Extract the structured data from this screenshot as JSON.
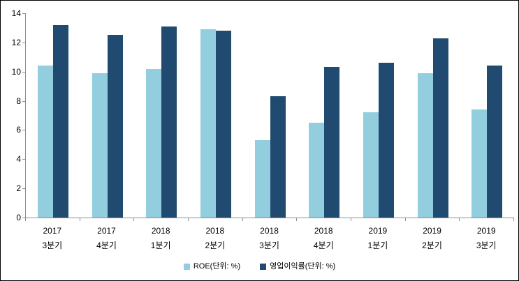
{
  "chart_data": {
    "type": "bar",
    "title": "",
    "xlabel": "",
    "ylabel": "",
    "categories": [
      {
        "year": "2017",
        "quarter": "3분기"
      },
      {
        "year": "2017",
        "quarter": "4분기"
      },
      {
        "year": "2018",
        "quarter": "1분기"
      },
      {
        "year": "2018",
        "quarter": "2분기"
      },
      {
        "year": "2018",
        "quarter": "3분기"
      },
      {
        "year": "2018",
        "quarter": "4분기"
      },
      {
        "year": "2019",
        "quarter": "1분기"
      },
      {
        "year": "2019",
        "quarter": "2분기"
      },
      {
        "year": "2019",
        "quarter": "3분기"
      }
    ],
    "series": [
      {
        "name": "ROE(단위: %)",
        "color": "#93CEDE",
        "values": [
          10.4,
          9.9,
          10.2,
          12.9,
          5.3,
          6.5,
          7.2,
          9.9,
          7.4
        ]
      },
      {
        "name": "영업이익률(단위: %)",
        "color": "#214A70",
        "values": [
          13.2,
          12.5,
          13.1,
          12.8,
          8.3,
          10.3,
          10.6,
          12.3,
          10.4
        ]
      }
    ],
    "ylim": [
      0,
      14
    ],
    "yticks": [
      0,
      2,
      4,
      6,
      8,
      10,
      12,
      14
    ],
    "grid": false,
    "legend_position": "bottom",
    "axis_color": "#8e8e8e",
    "text_color": "#000000"
  }
}
